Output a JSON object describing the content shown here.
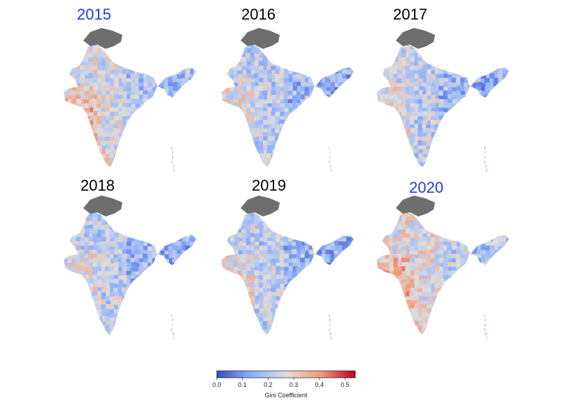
{
  "panels": [
    {
      "year": "2015",
      "label_color": "#1f3fd6",
      "highlight": true,
      "tone": "mixed"
    },
    {
      "year": "2016",
      "label_color": "#000000",
      "highlight": false,
      "tone": "mostly-blue"
    },
    {
      "year": "2017",
      "label_color": "#000000",
      "highlight": false,
      "tone": "mostly-blue"
    },
    {
      "year": "2018",
      "label_color": "#000000",
      "highlight": false,
      "tone": "mostly-blue"
    },
    {
      "year": "2019",
      "label_color": "#000000",
      "highlight": false,
      "tone": "mostly-blue"
    },
    {
      "year": "2020",
      "label_color": "#1f3fd6",
      "highlight": true,
      "tone": "mixed-high"
    }
  ],
  "colorbar": {
    "label": "Gini Coefficient",
    "ticks": [
      "0.0",
      "0.1",
      "0.2",
      "0.3",
      "0.4",
      "0.5"
    ],
    "tick_values": [
      0.0,
      0.1,
      0.2,
      0.3,
      0.4,
      0.5
    ],
    "range": [
      0.0,
      0.54
    ],
    "colormap": "coolwarm",
    "colors": {
      "low": "#3b4cc0",
      "mid": "#dddddd",
      "high": "#b40426"
    }
  },
  "no_data_color": "#6e6e6e"
}
